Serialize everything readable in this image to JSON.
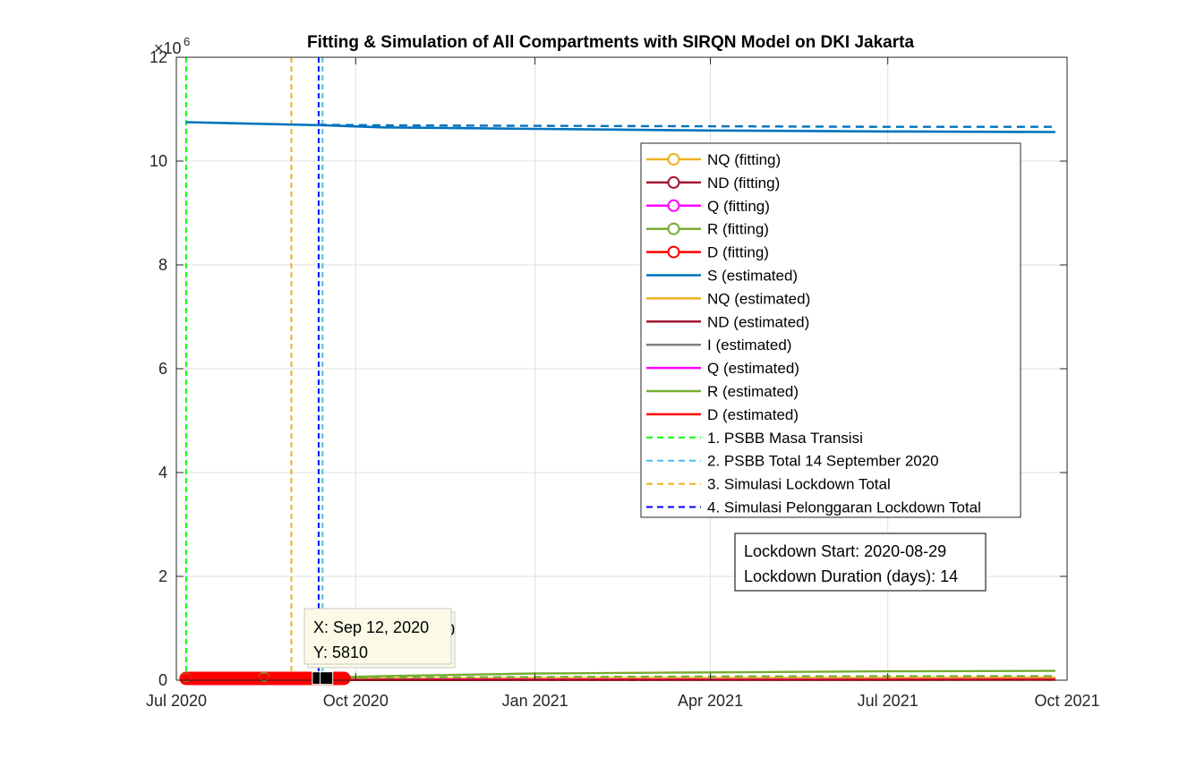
{
  "chart_data": {
    "type": "line",
    "title": "Fitting & Simulation of All Compartments with SIRQN Model on DKI Jakarta",
    "xlabel": "",
    "ylabel": "",
    "y_exponent_label": "×10",
    "y_exponent_power": "6",
    "xlim": [
      "2020-07-01",
      "2021-10-01"
    ],
    "ylim": [
      0,
      12
    ],
    "grid": true,
    "x_ticks": [
      {
        "date": "2020-07-01",
        "label": "Jul 2020"
      },
      {
        "date": "2020-10-01",
        "label": "Oct 2020"
      },
      {
        "date": "2021-01-01",
        "label": "Jan 2021"
      },
      {
        "date": "2021-04-01",
        "label": "Apr 2021"
      },
      {
        "date": "2021-07-01",
        "label": "Jul 2021"
      },
      {
        "date": "2021-10-01",
        "label": "Oct 2021"
      }
    ],
    "y_ticks": [
      {
        "value": 0,
        "label": "0"
      },
      {
        "value": 2,
        "label": "2"
      },
      {
        "value": 4,
        "label": "4"
      },
      {
        "value": 6,
        "label": "6"
      },
      {
        "value": 8,
        "label": "8"
      },
      {
        "value": 10,
        "label": "10"
      },
      {
        "value": 12,
        "label": "12"
      }
    ],
    "series": [
      {
        "name": "NQ (fitting)",
        "color": "#EDB120",
        "style": "solid-marker",
        "x": [
          "2020-07-06",
          "2020-08-15",
          "2020-09-15"
        ],
        "y": [
          0.005,
          0.02,
          0.03
        ]
      },
      {
        "name": "ND (fitting)",
        "color": "#A2142F",
        "style": "solid-marker",
        "x": [
          "2020-07-06",
          "2020-08-15",
          "2020-09-15"
        ],
        "y": [
          0.001,
          0.003,
          0.005
        ]
      },
      {
        "name": "Q (fitting)",
        "color": "#FF00FF",
        "style": "solid-marker",
        "x": [
          "2020-07-06",
          "2020-08-15",
          "2020-09-15"
        ],
        "y": [
          0.004,
          0.008,
          0.012
        ]
      },
      {
        "name": "R (fitting)",
        "color": "#77AC30",
        "style": "solid-marker",
        "x": [
          "2020-07-06",
          "2020-08-15",
          "2020-09-15"
        ],
        "y": [
          0.01,
          0.025,
          0.04
        ]
      },
      {
        "name": "D (fitting)",
        "color": "#FF0000",
        "style": "solid-marker",
        "x": [
          "2020-07-06",
          "2020-08-15",
          "2020-09-15"
        ],
        "y": [
          0.0005,
          0.001,
          0.0015
        ]
      },
      {
        "name": "S (estimated)",
        "color": "#0072BD",
        "style": "solid",
        "x": [
          "2020-07-06",
          "2020-09-15",
          "2020-10-15",
          "2021-01-01",
          "2021-04-01",
          "2021-07-01",
          "2021-09-25"
        ],
        "y": [
          10.75,
          10.69,
          10.65,
          10.62,
          10.59,
          10.57,
          10.56
        ]
      },
      {
        "name": "NQ (estimated)",
        "color": "#EDB120",
        "style": "solid",
        "x": [
          "2020-07-06",
          "2020-10-01",
          "2021-01-01",
          "2021-09-25"
        ],
        "y": [
          0.005,
          0.03,
          0.04,
          0.05
        ]
      },
      {
        "name": "ND (estimated)",
        "color": "#A2142F",
        "style": "solid",
        "x": [
          "2020-07-06",
          "2020-10-01",
          "2021-01-01",
          "2021-09-25"
        ],
        "y": [
          0.001,
          0.006,
          0.01,
          0.015
        ]
      },
      {
        "name": "I (estimated)",
        "color": "#7F7F7F",
        "style": "solid",
        "x": [
          "2020-07-06",
          "2020-10-01",
          "2021-01-01",
          "2021-09-25"
        ],
        "y": [
          0.003,
          0.01,
          0.012,
          0.014
        ]
      },
      {
        "name": "Q (estimated)",
        "color": "#FF00FF",
        "style": "solid",
        "x": [
          "2020-07-06",
          "2020-10-01",
          "2021-01-01",
          "2021-09-25"
        ],
        "y": [
          0.004,
          0.012,
          0.014,
          0.016
        ]
      },
      {
        "name": "R (estimated)",
        "color": "#77AC30",
        "style": "solid",
        "x": [
          "2020-07-06",
          "2020-09-15",
          "2020-10-15",
          "2021-01-01",
          "2021-04-01",
          "2021-07-01",
          "2021-09-25"
        ],
        "y": [
          0.01,
          0.05,
          0.08,
          0.13,
          0.15,
          0.17,
          0.18
        ]
      },
      {
        "name": "D (estimated)",
        "color": "#FF0000",
        "style": "solid",
        "x": [
          "2020-07-06",
          "2020-10-01",
          "2021-01-01",
          "2021-09-25"
        ],
        "y": [
          0.0005,
          0.003,
          0.005,
          0.007
        ]
      },
      {
        "name": "",
        "color": "#0072BD",
        "style": "dashed",
        "x": [
          "2020-09-12",
          "2020-10-15",
          "2021-01-01",
          "2021-04-01",
          "2021-07-01",
          "2021-09-25"
        ],
        "y": [
          10.7,
          10.69,
          10.68,
          10.67,
          10.66,
          10.66
        ]
      },
      {
        "name": "",
        "color": "#77AC30",
        "style": "dashed",
        "x": [
          "2020-09-12",
          "2020-10-15",
          "2021-01-01",
          "2021-04-01",
          "2021-07-01",
          "2021-09-25"
        ],
        "y": [
          0.04,
          0.05,
          0.06,
          0.07,
          0.075,
          0.08
        ]
      },
      {
        "name": "",
        "color": "#FF0000",
        "style": "dashed",
        "x": [
          "2020-09-12",
          "2021-09-25"
        ],
        "y": [
          0.003,
          0.01
        ]
      }
    ],
    "fitting_band": {
      "color": "#FF0000",
      "x": [
        "2020-07-06",
        "2020-09-25"
      ],
      "y": [
        0,
        0
      ]
    },
    "vlines": [
      {
        "name": "1. PSBB Masa Transisi",
        "color": "#00FF00",
        "x": "2020-07-06"
      },
      {
        "name": "2. PSBB Total 14 September 2020",
        "color": "#4DBEEE",
        "x": "2020-09-14"
      },
      {
        "name": "3. Simulasi Lockdown Total",
        "color": "#EDB120",
        "x": "2020-08-29"
      },
      {
        "name": "4. Simulasi Pelonggaran Lockdown Total",
        "color": "#0000FF",
        "x": "2020-09-12"
      }
    ],
    "datatip_markers": [
      {
        "x": "2020-09-12",
        "y": 0.00581
      },
      {
        "x": "2020-09-16",
        "y": 0.00581
      }
    ],
    "legend": {
      "placement": "right",
      "entries": [
        {
          "label": "NQ (fitting)",
          "color": "#EDB120",
          "style": "solid-marker"
        },
        {
          "label": "ND (fitting)",
          "color": "#A2142F",
          "style": "solid-marker"
        },
        {
          "label": "Q (fitting)",
          "color": "#FF00FF",
          "style": "solid-marker"
        },
        {
          "label": "R (fitting)",
          "color": "#77AC30",
          "style": "solid-marker"
        },
        {
          "label": "D (fitting)",
          "color": "#FF0000",
          "style": "solid-marker"
        },
        {
          "label": "S (estimated)",
          "color": "#0072BD",
          "style": "solid"
        },
        {
          "label": "NQ (estimated)",
          "color": "#EDB120",
          "style": "solid"
        },
        {
          "label": "ND (estimated)",
          "color": "#A2142F",
          "style": "solid"
        },
        {
          "label": "I (estimated)",
          "color": "#7F7F7F",
          "style": "solid"
        },
        {
          "label": "Q (estimated)",
          "color": "#FF00FF",
          "style": "solid"
        },
        {
          "label": "R (estimated)",
          "color": "#77AC30",
          "style": "solid"
        },
        {
          "label": "D (estimated)",
          "color": "#FF0000",
          "style": "solid"
        },
        {
          "label": "1. PSBB Masa Transisi",
          "color": "#00FF00",
          "style": "dashed"
        },
        {
          "label": "2. PSBB Total 14 September 2020",
          "color": "#4DBEEE",
          "style": "dashed"
        },
        {
          "label": "3. Simulasi Lockdown Total",
          "color": "#EDB120",
          "style": "dashed"
        },
        {
          "label": "4. Simulasi Pelonggaran Lockdown Total",
          "color": "#0000FF",
          "style": "dashed"
        }
      ]
    },
    "annotation": {
      "line1": "Lockdown Start: 2020-08-29",
      "line2": "Lockdown Duration (days): 14"
    },
    "datatip": {
      "x_text": "X: Sep 12, 2020",
      "y_text": "Y: 5810",
      "behind_fragment": "20"
    }
  }
}
